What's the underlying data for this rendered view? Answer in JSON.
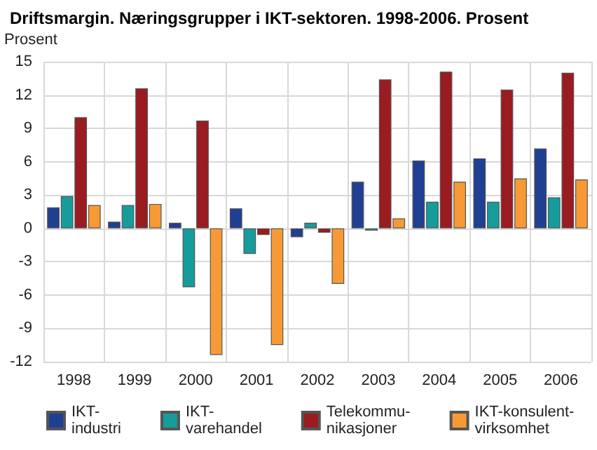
{
  "chart_data": {
    "type": "bar",
    "title": "Driftsmargin. Næringsgrupper i IKT-sektoren. 1998-2006. Prosent",
    "ylabel": "Prosent",
    "categories": [
      "1998",
      "1999",
      "2000",
      "2001",
      "2002",
      "2003",
      "2004",
      "2005",
      "2006"
    ],
    "series": [
      {
        "name": "IKT-industri",
        "color": "#1f3f93",
        "values": [
          1.9,
          0.6,
          0.5,
          1.8,
          -0.8,
          4.2,
          6.1,
          6.3,
          7.2
        ]
      },
      {
        "name": "IKT-varehandel",
        "color": "#169c9a",
        "values": [
          2.9,
          2.1,
          -5.3,
          -2.3,
          0.5,
          -0.2,
          2.4,
          2.4,
          2.8
        ]
      },
      {
        "name": "Telekommu-nikasjoner",
        "color": "#9a1b20",
        "values": [
          10.0,
          12.6,
          9.7,
          -0.6,
          -0.4,
          13.4,
          14.1,
          12.5,
          14.0
        ]
      },
      {
        "name": "IKT-konsulent-virksomhet",
        "color": "#f79a35",
        "values": [
          2.1,
          2.2,
          -11.4,
          -10.5,
          -5.0,
          0.9,
          4.2,
          4.5,
          4.4
        ]
      }
    ],
    "ylim": [
      -12,
      15
    ],
    "yticks": [
      -12,
      -9,
      -6,
      -3,
      0,
      3,
      6,
      9,
      12,
      15
    ],
    "grid": true,
    "legend": "bottom"
  }
}
